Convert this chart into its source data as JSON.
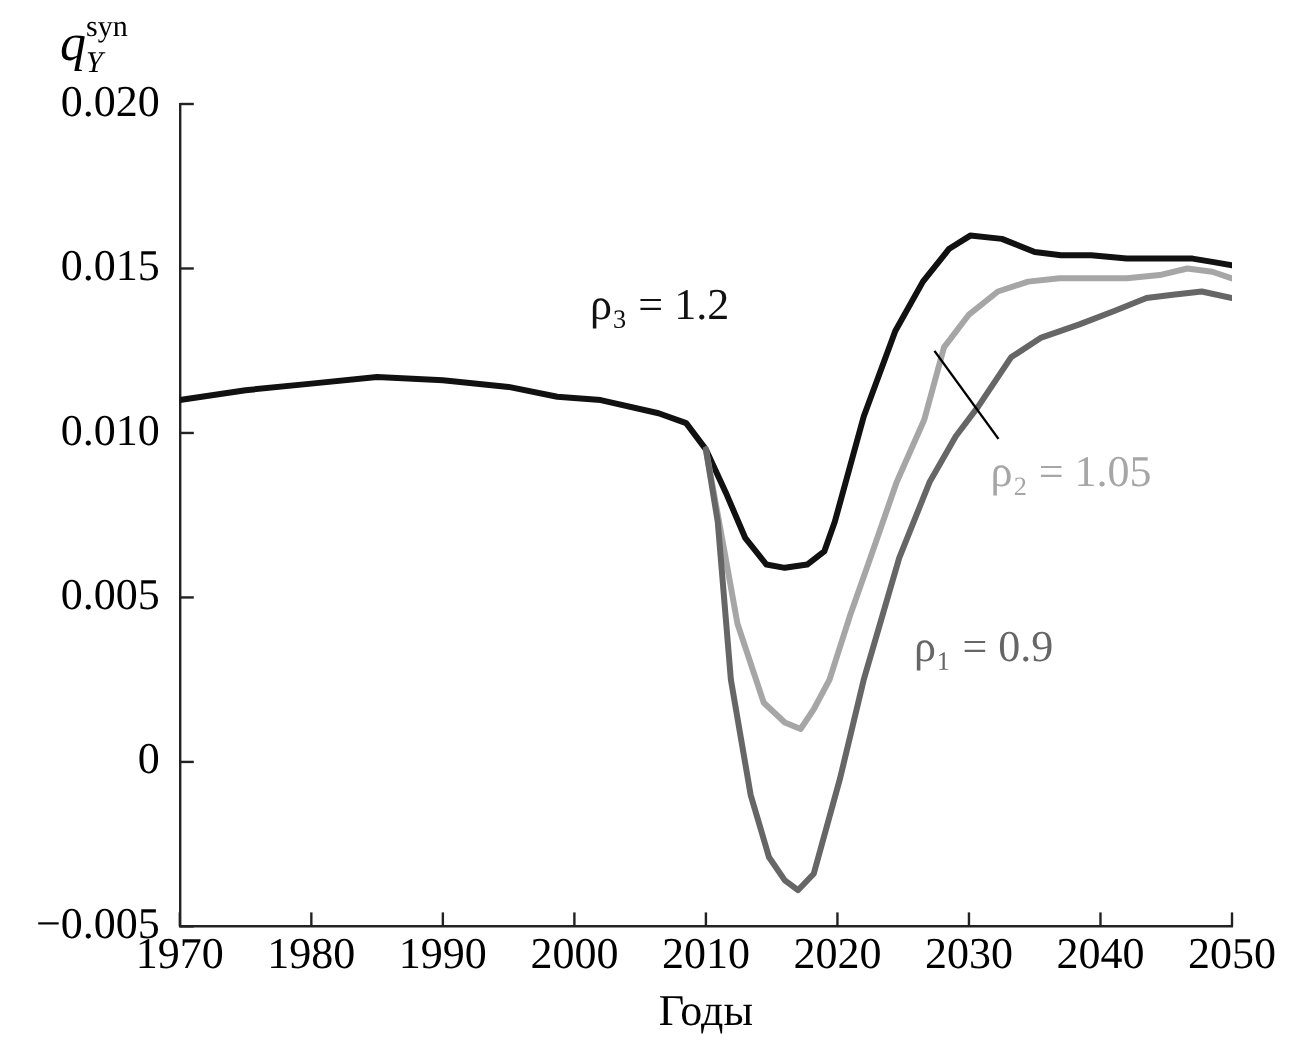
{
  "chart_data": {
    "type": "line",
    "ylabel": "q$_{Y}$$^{syn}$",
    "xlabel": "Годы",
    "xlim": [
      1970,
      2050
    ],
    "xticks": [
      1970,
      1980,
      1990,
      2000,
      2010,
      2020,
      2030,
      2040,
      2050
    ],
    "ylim": [
      -0.005,
      0.02
    ],
    "yticks": [
      -0.005,
      0,
      0.005,
      {
        "value": 0.01,
        "label": "0.010"
      },
      0.015,
      {
        "value": 0.02,
        "label": "0.020"
      }
    ],
    "grid": false,
    "legend": false,
    "marker": "none",
    "line_style": "solid",
    "series": [
      {
        "name": "ρ₁ = 0.9",
        "color": "#666666",
        "x": [
          2010,
          2010.9,
          2011.9,
          2013.4,
          2014.8,
          2016,
          2017,
          2018.2,
          2020.2,
          2022,
          2024.7,
          2027,
          2029,
          2030.7,
          2033.2,
          2035.5,
          2038.4,
          2041,
          2043.5,
          2045.5,
          2047.7,
          2050
        ],
        "values": [
          0.0095,
          0.0073,
          0.0025,
          -0.001,
          -0.0029,
          -0.0036,
          -0.0039,
          -0.0034,
          -0.0005,
          0.0025,
          0.0062,
          0.0085,
          0.0099,
          0.0108,
          0.0123,
          0.0129,
          0.0133,
          0.0137,
          0.0141,
          0.0142,
          0.0143,
          0.0141
        ]
      },
      {
        "name": "ρ₂ = 1.05",
        "color": "#a6a6a6",
        "x": [
          2010,
          2011.5,
          2012.4,
          2014.4,
          2016,
          2017.2,
          2018.2,
          2019.4,
          2021,
          2022.5,
          2024.5,
          2026.6,
          2028.1,
          2030,
          2032.2,
          2034.5,
          2036.9,
          2039.5,
          2042,
          2044.5,
          2046.6,
          2048.5,
          2050
        ],
        "values": [
          0.0095,
          0.0062,
          0.0042,
          0.0018,
          0.0012,
          0.001,
          0.0016,
          0.0025,
          0.0045,
          0.0062,
          0.0085,
          0.0104,
          0.0126,
          0.0136,
          0.0143,
          0.0146,
          0.0147,
          0.0147,
          0.0147,
          0.0148,
          0.015,
          0.0149,
          0.0147
        ]
      },
      {
        "name": "ρ₃ = 1.2",
        "color": "#111111",
        "x": [
          1970,
          1975,
          1980,
          1985,
          1990,
          1995,
          1998.7,
          2002,
          2006.4,
          2008.5,
          2010,
          2011.5,
          2013,
          2014.6,
          2016,
          2017.7,
          2019,
          2019.8,
          2022,
          2024.4,
          2026.5,
          2028.5,
          2030.1,
          2032.5,
          2035,
          2037,
          2039.3,
          2042,
          2045,
          2047,
          2048.5,
          2050
        ],
        "values": [
          0.011,
          0.0113,
          0.0115,
          0.0117,
          0.0116,
          0.0114,
          0.0111,
          0.011,
          0.0106,
          0.0103,
          0.0095,
          0.0082,
          0.0068,
          0.006,
          0.0059,
          0.006,
          0.0064,
          0.0073,
          0.0105,
          0.0131,
          0.0146,
          0.0156,
          0.016,
          0.0159,
          0.0155,
          0.0154,
          0.0154,
          0.0153,
          0.0153,
          0.0153,
          0.0152,
          0.0151
        ]
      }
    ]
  }
}
